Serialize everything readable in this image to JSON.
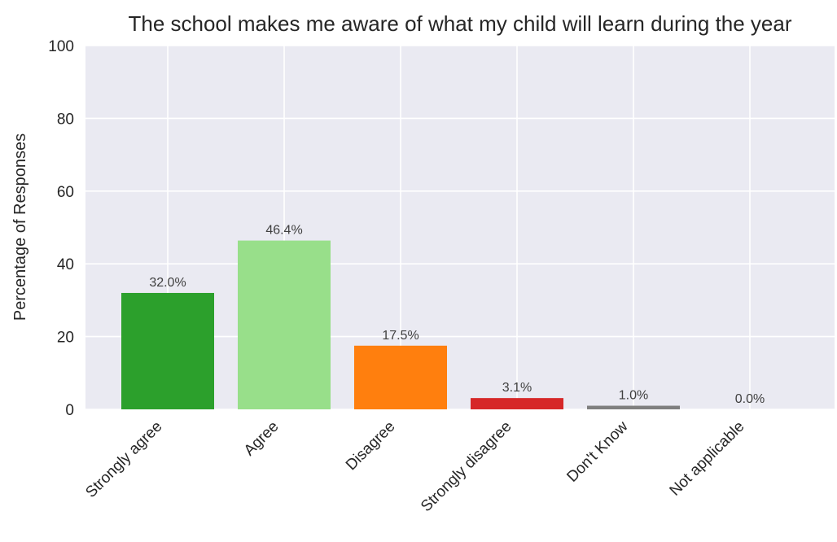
{
  "chart_data": {
    "type": "bar",
    "title": "The school makes me aware of what my child will learn during the year",
    "xlabel": "",
    "ylabel": "Percentage of Responses",
    "ylim": [
      0,
      100
    ],
    "yticks": [
      0,
      20,
      40,
      60,
      80,
      100
    ],
    "grid": true,
    "categories": [
      "Strongly agree",
      "Agree",
      "Disagree",
      "Strongly disagree",
      "Don't Know",
      "Not applicable"
    ],
    "values": [
      32.0,
      46.4,
      17.5,
      3.1,
      1.0,
      0.0
    ],
    "value_labels": [
      "32.0%",
      "46.4%",
      "17.5%",
      "3.1%",
      "1.0%",
      "0.0%"
    ],
    "colors": [
      "#2ca02c",
      "#98df8a",
      "#ff7f0e",
      "#d62728",
      "#7f7f7f",
      "#c7c7c7"
    ],
    "background": "#eaeaf2"
  }
}
